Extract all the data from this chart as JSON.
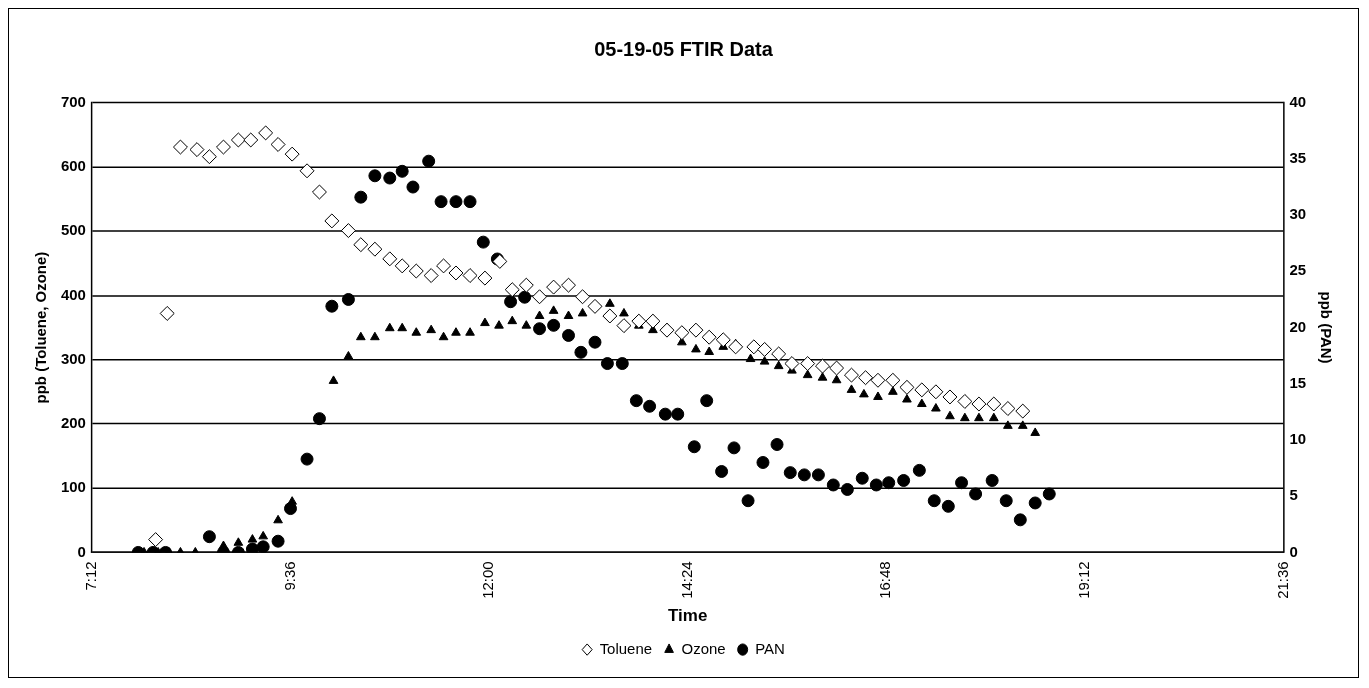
{
  "chart_data": {
    "type": "scatter",
    "title": "05-19-05 FTIR Data",
    "xlabel": "Time",
    "ylabel": "ppb (Toluene, Ozone)",
    "y2label": "ppb (PAN)",
    "xlim": [
      7.2,
      21.6
    ],
    "xticks": [
      {
        "value": 7.2,
        "label": "7:12"
      },
      {
        "value": 9.6,
        "label": "9:36"
      },
      {
        "value": 12,
        "label": "12:00"
      },
      {
        "value": 14.4,
        "label": "14:24"
      },
      {
        "value": 16.8,
        "label": "16:48"
      },
      {
        "value": 19.2,
        "label": "19:12"
      },
      {
        "value": 21.6,
        "label": "21:36"
      }
    ],
    "ylim": [
      0,
      700
    ],
    "yticks": [
      0,
      100,
      200,
      300,
      400,
      500,
      600,
      700
    ],
    "y2lim": [
      0,
      40
    ],
    "y2ticks": [
      0,
      5,
      10,
      15,
      20,
      25,
      30,
      35,
      40
    ],
    "grid": "y",
    "legend": "bottom",
    "series": [
      {
        "name": "Toluene",
        "marker": "diamond",
        "color": "#000000",
        "x": [
          7.97,
          8.11,
          8.27,
          8.47,
          8.62,
          8.79,
          8.97,
          9.12,
          9.3,
          9.45,
          9.62,
          9.8,
          9.95,
          10.1,
          10.3,
          10.45,
          10.62,
          10.8,
          10.95,
          11.12,
          11.3,
          11.45,
          11.6,
          11.77,
          11.95,
          12.13,
          12.28,
          12.45,
          12.61,
          12.78,
          12.96,
          13.13,
          13.28,
          13.46,
          13.63,
          13.81,
          13.98,
          14.15,
          14.33,
          14.5,
          14.66,
          14.83,
          14.98,
          15.2,
          15.33,
          15.5,
          15.66,
          15.85,
          16.03,
          16.2,
          16.38,
          16.55,
          16.7,
          16.88,
          17.05,
          17.23,
          17.4,
          17.57,
          17.75,
          17.92,
          18.1,
          18.27,
          18.45
        ],
        "values": [
          20,
          372,
          631,
          627,
          616,
          631,
          642,
          642,
          653,
          635,
          620,
          594,
          561,
          516,
          501,
          479,
          472,
          457,
          446,
          438,
          431,
          446,
          435,
          431,
          427,
          453,
          409,
          416,
          398,
          413,
          416,
          398,
          383,
          368,
          353,
          360,
          360,
          346,
          342,
          346,
          335,
          331,
          320,
          320,
          316,
          309,
          294,
          294,
          290,
          287,
          276,
          272,
          268,
          268,
          257,
          253,
          250,
          242,
          235,
          231,
          231,
          224,
          220
        ]
      },
      {
        "name": "Ozone",
        "marker": "triangle",
        "color": "#000000",
        "x": [
          7.83,
          8.0,
          8.13,
          8.27,
          8.45,
          8.79,
          8.97,
          9.14,
          9.27,
          9.45,
          9.62,
          10.12,
          10.3,
          10.45,
          10.62,
          10.8,
          10.95,
          11.12,
          11.3,
          11.45,
          11.6,
          11.77,
          11.95,
          12.12,
          12.28,
          12.45,
          12.61,
          12.78,
          12.96,
          13.13,
          13.46,
          13.63,
          13.81,
          13.98,
          14.15,
          14.33,
          14.5,
          14.66,
          14.83,
          14.98,
          15.16,
          15.33,
          15.5,
          15.66,
          15.85,
          16.03,
          16.2,
          16.38,
          16.53,
          16.7,
          16.88,
          17.05,
          17.23,
          17.4,
          17.57,
          17.75,
          17.92,
          18.1,
          18.27,
          18.45,
          18.6
        ],
        "values": [
          0,
          0,
          0,
          0,
          0,
          10,
          15,
          20,
          25,
          50,
          79,
          267,
          305,
          335,
          335,
          349,
          349,
          342,
          346,
          335,
          342,
          342,
          357,
          353,
          360,
          353,
          368,
          376,
          368,
          372,
          387,
          372,
          353,
          346,
          349,
          327,
          316,
          312,
          320,
          324,
          301,
          297,
          290,
          283,
          276,
          272,
          268,
          253,
          246,
          242,
          250,
          238,
          231,
          224,
          212,
          209,
          209,
          209,
          197,
          197,
          186
        ]
      },
      {
        "name": "PAN",
        "marker": "circle",
        "color": "#000000",
        "axis": "y2",
        "x": [
          7.76,
          7.94,
          8.09,
          8.27,
          8.45,
          8.62,
          8.79,
          8.97,
          9.14,
          9.27,
          9.45,
          9.6,
          9.8,
          9.95,
          10.1,
          10.3,
          10.45,
          10.62,
          10.8,
          10.95,
          11.08,
          11.27,
          11.42,
          11.6,
          11.77,
          11.93,
          12.1,
          12.26,
          12.43,
          12.61,
          12.78,
          12.96,
          13.11,
          13.28,
          13.43,
          13.61,
          13.78,
          13.94,
          14.13,
          14.28,
          14.48,
          14.63,
          14.81,
          14.96,
          15.13,
          15.31,
          15.48,
          15.64,
          15.81,
          15.98,
          16.16,
          16.33,
          16.51,
          16.68,
          16.83,
          17.01,
          17.2,
          17.38,
          17.55,
          17.71,
          17.88,
          18.08,
          18.25,
          18.42,
          18.6,
          18.77
        ],
        "values": [
          0,
          0,
          0,
          null,
          null,
          1.4,
          0,
          0,
          0.3,
          0.5,
          1,
          3.9,
          8.3,
          11.9,
          21.9,
          22.5,
          31.6,
          33.5,
          33.3,
          33.9,
          32.5,
          34.8,
          31.2,
          31.2,
          31.2,
          27.6,
          26.1,
          22.3,
          22.7,
          19.9,
          20.2,
          19.3,
          17.8,
          18.7,
          16.8,
          16.8,
          13.5,
          13,
          12.3,
          12.3,
          9.4,
          13.5,
          7.2,
          9.3,
          4.6,
          8,
          9.6,
          7.1,
          6.9,
          6.9,
          6,
          5.6,
          6.6,
          6,
          6.2,
          6.4,
          7.3,
          4.6,
          4.1,
          6.2,
          5.2,
          6.4,
          4.6,
          2.9,
          4.4,
          5.2
        ]
      }
    ]
  }
}
